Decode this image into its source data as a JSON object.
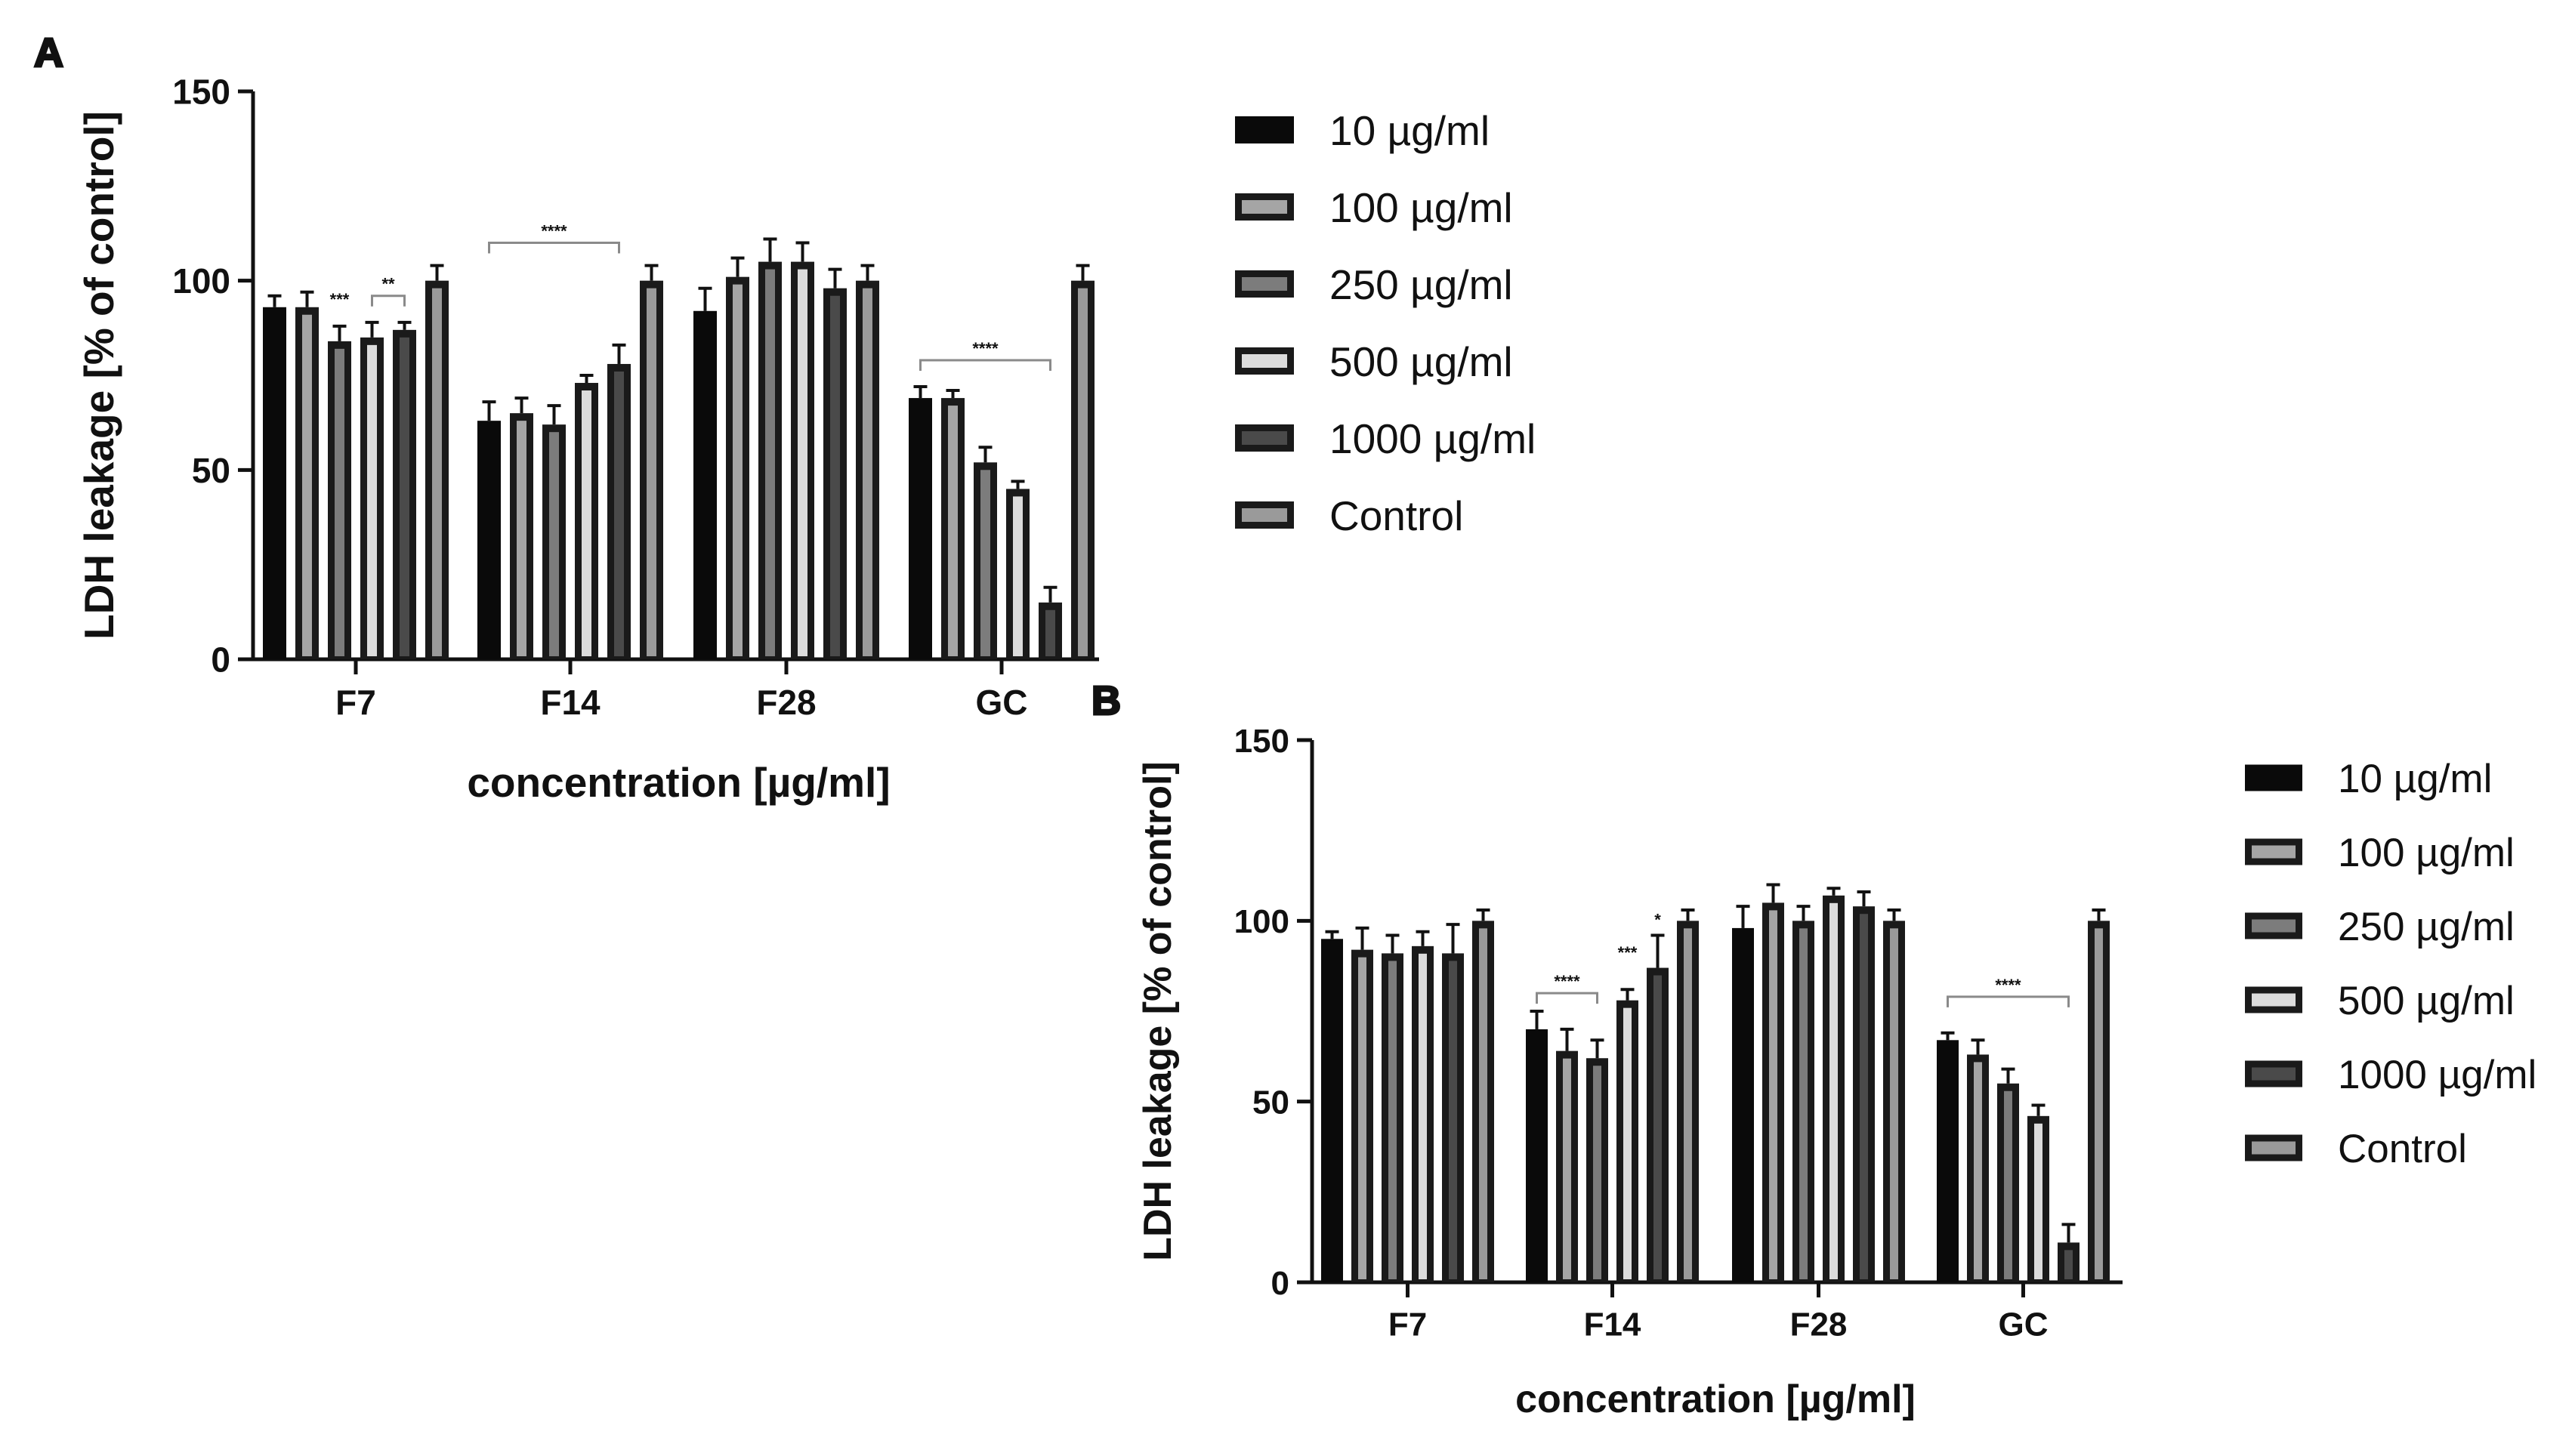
{
  "colors": {
    "axis": "#111111",
    "series": [
      "#0a0a0a",
      "#1a1a1a",
      "#1a1a1a",
      "#1a1a1a",
      "#1a1a1a",
      "#1a1a1a"
    ],
    "inner": [
      "#0a0a0a",
      "#a5a5a5",
      "#7c7c7c",
      "#dcdcdc",
      "#4a4a4a",
      "#9a9a9a"
    ],
    "bracket": "#8a8a8a"
  },
  "chart_data": [
    {
      "panel_label": "A",
      "type": "bar",
      "title": "",
      "xlabel": "concentration [µg/ml]",
      "ylabel": "LDH leakage [% of control]",
      "ylim": [
        0,
        150
      ],
      "yticks": [
        "0",
        "50",
        "100",
        "150"
      ],
      "categories": [
        "F7",
        "F14",
        "F28",
        "GC"
      ],
      "legend_position": "right",
      "series": [
        {
          "name": "10 µg/ml",
          "values": [
            93,
            63,
            92,
            69
          ],
          "errors": [
            3,
            5,
            6,
            3
          ]
        },
        {
          "name": "100 µg/ml",
          "values": [
            93,
            65,
            101,
            69
          ],
          "errors": [
            4,
            4,
            5,
            2
          ]
        },
        {
          "name": "250 µg/ml",
          "values": [
            84,
            62,
            105,
            52
          ],
          "errors": [
            4,
            5,
            6,
            4
          ]
        },
        {
          "name": "500 µg/ml",
          "values": [
            85,
            73,
            105,
            45
          ],
          "errors": [
            4,
            2,
            5,
            2
          ]
        },
        {
          "name": "1000 µg/ml",
          "values": [
            87,
            78,
            98,
            15
          ],
          "errors": [
            2,
            5,
            5,
            4
          ]
        },
        {
          "name": "Control",
          "values": [
            100,
            100,
            100,
            100
          ],
          "errors": [
            4,
            4,
            4,
            4
          ]
        }
      ],
      "significance": [
        {
          "label": "***",
          "category": "F7",
          "from_series": 2,
          "to_series": 2,
          "y": 92,
          "bracket": false
        },
        {
          "label": "**",
          "category": "F7",
          "from_series": 3,
          "to_series": 4,
          "y": 96,
          "bracket": true
        },
        {
          "label": "****",
          "category": "F14",
          "from_series": 0,
          "to_series": 4,
          "y": 110,
          "bracket": true
        },
        {
          "label": "****",
          "category": "GC",
          "from_series": 0,
          "to_series": 4,
          "y": 79,
          "bracket": true
        }
      ]
    },
    {
      "panel_label": "B",
      "type": "bar",
      "title": "",
      "xlabel": "concentration [µg/ml]",
      "ylabel": "LDH leakage [% of control]",
      "ylim": [
        0,
        150
      ],
      "yticks": [
        "0",
        "50",
        "100",
        "150"
      ],
      "categories": [
        "F7",
        "F14",
        "F28",
        "GC"
      ],
      "legend_position": "right",
      "series": [
        {
          "name": "10 µg/ml",
          "values": [
            95,
            70,
            98,
            67
          ],
          "errors": [
            2,
            5,
            6,
            2
          ]
        },
        {
          "name": "100 µg/ml",
          "values": [
            92,
            64,
            105,
            63
          ],
          "errors": [
            6,
            6,
            5,
            4
          ]
        },
        {
          "name": "250 µg/ml",
          "values": [
            91,
            62,
            100,
            55
          ],
          "errors": [
            5,
            5,
            4,
            4
          ]
        },
        {
          "name": "500 µg/ml",
          "values": [
            93,
            78,
            107,
            46
          ],
          "errors": [
            4,
            3,
            2,
            3
          ]
        },
        {
          "name": "1000 µg/ml",
          "values": [
            91,
            87,
            104,
            11
          ],
          "errors": [
            8,
            9,
            4,
            5
          ]
        },
        {
          "name": "Control",
          "values": [
            100,
            100,
            100,
            100
          ],
          "errors": [
            3,
            3,
            3,
            3
          ]
        }
      ],
      "significance": [
        {
          "label": "****",
          "category": "F14",
          "from_series": 0,
          "to_series": 2,
          "y": 80,
          "bracket": true
        },
        {
          "label": "***",
          "category": "F14",
          "from_series": 3,
          "to_series": 3,
          "y": 88,
          "bracket": false
        },
        {
          "label": "*",
          "category": "F14",
          "from_series": 4,
          "to_series": 4,
          "y": 97,
          "bracket": false
        },
        {
          "label": "****",
          "category": "GC",
          "from_series": 0,
          "to_series": 4,
          "y": 79,
          "bracket": true
        }
      ]
    }
  ]
}
